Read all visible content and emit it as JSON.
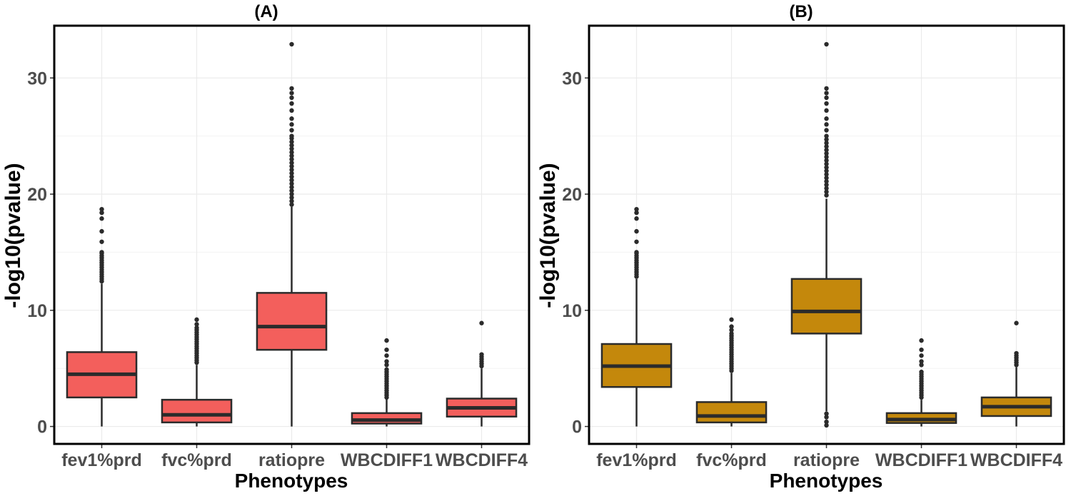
{
  "colors": {
    "panel_a_fill": "#F35F5C",
    "panel_b_fill": "#C4880C",
    "stroke": "#2B2B2B",
    "grid": "#EBEBEB",
    "axis_text": "#4D4D4D"
  },
  "chart_data": [
    {
      "type": "box",
      "title": "(A)",
      "xlabel": "Phenotypes",
      "ylabel": "-log10(pvalue)",
      "ylim": [
        -1.5,
        34.5
      ],
      "yticks": [
        0,
        10,
        20,
        30
      ],
      "ytick_labels": [
        "0",
        "10",
        "20",
        "30"
      ],
      "categories": [
        "fev1%prd",
        "fvc%prd",
        "ratiopre",
        "WBCDIFF1",
        "WBCDIFF4"
      ],
      "boxes": [
        {
          "category": "fev1%prd",
          "q1": 2.5,
          "median": 4.5,
          "q3": 6.4,
          "whisker_low": 0.0,
          "whisker_high": 12.3,
          "outliers": [
            12.5,
            12.7,
            12.9,
            13.1,
            13.3,
            13.5,
            13.7,
            13.9,
            14.1,
            14.3,
            14.5,
            14.7,
            14.9,
            15.0,
            15.9,
            16.8,
            17.9,
            18.4,
            18.7
          ]
        },
        {
          "category": "fvc%prd",
          "q1": 0.35,
          "median": 1.0,
          "q3": 2.3,
          "whisker_low": 0.0,
          "whisker_high": 5.3,
          "outliers": [
            5.5,
            5.7,
            5.9,
            6.1,
            6.3,
            6.5,
            6.7,
            6.9,
            7.1,
            7.3,
            7.5,
            7.7,
            7.9,
            8.1,
            8.3,
            8.5,
            8.8,
            9.2
          ]
        },
        {
          "category": "ratiopre",
          "q1": 6.6,
          "median": 8.6,
          "q3": 11.5,
          "whisker_low": 0.0,
          "whisker_high": 18.9,
          "outliers": [
            19.1,
            19.4,
            19.7,
            20.0,
            20.3,
            20.6,
            20.9,
            21.2,
            21.5,
            21.8,
            22.1,
            22.4,
            22.7,
            23.0,
            23.3,
            23.6,
            23.9,
            24.2,
            24.5,
            24.8,
            25.0,
            25.5,
            26.0,
            26.5,
            27.2,
            27.8,
            28.3,
            28.7,
            29.1,
            32.9
          ]
        },
        {
          "category": "WBCDIFF1",
          "q1": 0.25,
          "median": 0.55,
          "q3": 1.15,
          "whisker_low": 0.0,
          "whisker_high": 2.4,
          "outliers": [
            2.5,
            2.7,
            2.9,
            3.1,
            3.3,
            3.5,
            3.7,
            3.9,
            4.1,
            4.3,
            4.5,
            4.7,
            4.9,
            5.3,
            5.6,
            6.1,
            6.6,
            7.4
          ]
        },
        {
          "category": "WBCDIFF4",
          "q1": 0.85,
          "median": 1.6,
          "q3": 2.4,
          "whisker_low": 0.0,
          "whisker_high": 5.0,
          "outliers": [
            5.2,
            5.4,
            5.6,
            5.8,
            6.0,
            6.2,
            8.9
          ]
        }
      ]
    },
    {
      "type": "box",
      "title": "(B)",
      "xlabel": "Phenotypes",
      "ylabel": "-log10(pvalue)",
      "ylim": [
        -1.5,
        34.5
      ],
      "yticks": [
        0,
        10,
        20,
        30
      ],
      "ytick_labels": [
        "0",
        "10",
        "20",
        "30"
      ],
      "categories": [
        "fev1%prd",
        "fvc%prd",
        "ratiopre",
        "WBCDIFF1",
        "WBCDIFF4"
      ],
      "boxes": [
        {
          "category": "fev1%prd",
          "q1": 3.4,
          "median": 5.2,
          "q3": 7.1,
          "whisker_low": 0.0,
          "whisker_high": 12.7,
          "outliers": [
            12.9,
            13.1,
            13.3,
            13.5,
            13.7,
            13.9,
            14.1,
            14.3,
            14.5,
            14.7,
            14.9,
            15.0,
            15.9,
            16.8,
            17.9,
            18.4,
            18.7
          ]
        },
        {
          "category": "fvc%prd",
          "q1": 0.35,
          "median": 0.9,
          "q3": 2.1,
          "whisker_low": 0.0,
          "whisker_high": 4.6,
          "outliers": [
            4.8,
            5.0,
            5.2,
            5.4,
            5.6,
            5.8,
            6.0,
            6.2,
            6.4,
            6.6,
            6.8,
            7.0,
            7.2,
            7.4,
            7.6,
            7.8,
            8.0,
            8.3,
            8.6,
            9.2
          ]
        },
        {
          "category": "ratiopre",
          "q1": 8.0,
          "median": 9.9,
          "q3": 12.7,
          "whisker_low": 1.3,
          "whisker_high": 19.6,
          "outliers": [
            0.1,
            0.4,
            0.8,
            1.1,
            19.9,
            20.2,
            20.5,
            20.8,
            21.1,
            21.4,
            21.7,
            22.0,
            22.3,
            22.6,
            22.9,
            23.2,
            23.5,
            23.8,
            24.1,
            24.4,
            24.7,
            25.0,
            25.5,
            26.0,
            26.5,
            27.2,
            27.8,
            28.3,
            28.7,
            29.1,
            32.9
          ]
        },
        {
          "category": "WBCDIFF1",
          "q1": 0.3,
          "median": 0.6,
          "q3": 1.15,
          "whisker_low": 0.0,
          "whisker_high": 2.3,
          "outliers": [
            2.5,
            2.7,
            2.9,
            3.1,
            3.3,
            3.5,
            3.7,
            3.9,
            4.1,
            4.3,
            4.5,
            4.7,
            5.3,
            5.6,
            6.1,
            6.6,
            7.4
          ]
        },
        {
          "category": "WBCDIFF4",
          "q1": 0.9,
          "median": 1.7,
          "q3": 2.5,
          "whisker_low": 0.0,
          "whisker_high": 5.1,
          "outliers": [
            5.3,
            5.5,
            5.7,
            5.9,
            6.1,
            6.3,
            8.9
          ]
        }
      ]
    }
  ]
}
